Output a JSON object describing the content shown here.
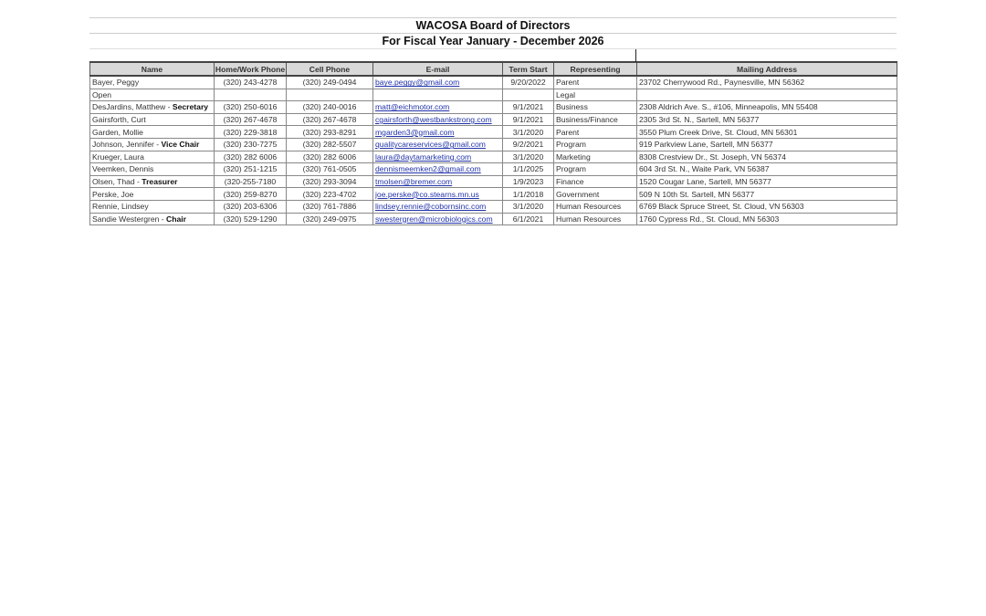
{
  "title": "WACOSA Board of Directors",
  "subtitle": "For Fiscal Year January -  December 2026",
  "columns": [
    "Name",
    "Home/Work Phone",
    "Cell Phone",
    "E-mail",
    "Term Start",
    "Representing",
    "Mailing Address"
  ],
  "rows": [
    {
      "name": "Bayer, Peggy",
      "role": "",
      "home": "(320) 243-4278",
      "cell": "(320) 249-0494",
      "email": "baye.peggy@gmail.com",
      "term": "9/20/2022",
      "rep": "Parent",
      "addr": "23702 Cherrywood Rd., Paynesville, MN  56362"
    },
    {
      "name": "Open",
      "role": "",
      "home": "",
      "cell": "",
      "email": "",
      "term": "",
      "rep": "Legal",
      "addr": ""
    },
    {
      "name": "DesJardins, Matthew - ",
      "role": "Secretary",
      "home": "(320) 250-6016",
      "cell": "(320) 240-0016",
      "email": "matt@eichmotor.com",
      "term": "9/1/2021",
      "rep": "Business",
      "addr": "2308 Aldrich Ave. S., #106, Minneapolis, MN  55408"
    },
    {
      "name": "Gairsforth, Curt",
      "role": "",
      "home": "(320) 267-4678",
      "cell": "(320) 267-4678",
      "email": "cgairsforth@westbankstrong.com",
      "term": "9/1/2021",
      "rep": "Business/Finance",
      "addr": "2305 3rd St. N., Sartell, MN  56377"
    },
    {
      "name": "Garden, Mollie",
      "role": "",
      "home": "(320) 229-3818",
      "cell": "(320) 293-8291",
      "email": "mgarden3@gmail.com",
      "term": "3/1/2020",
      "rep": "Parent",
      "addr": "3550 Plum Creek Drive, St. Cloud, MN  56301"
    },
    {
      "name": "Johnson, Jennifer - ",
      "role": "Vice Chair",
      "home": "(320) 230-7275",
      "cell": "(320) 282-5507",
      "email": "qualitycareservices@gmail.com",
      "term": "9/2/2021",
      "rep": "Program",
      "addr": "919 Parkview Lane, Sartell, MN  56377"
    },
    {
      "name": "Krueger, Laura",
      "role": "",
      "home": "(320) 282 6006",
      "cell": "(320) 282 6006",
      "email": "laura@daytamarketing.com",
      "term": "3/1/2020",
      "rep": "Marketing",
      "addr": "8308 Crestview Dr., St. Joseph, VN  56374"
    },
    {
      "name": "Veemken, Dennis",
      "role": "",
      "home": "(320) 251-1215",
      "cell": "(320) 761-0505",
      "email": "dennismeemken2@gmail.com",
      "term": "1/1/2025",
      "rep": "Program",
      "addr": "604 3rd St. N., Waite Park, VN  56387"
    },
    {
      "name": "Olsen, Thad - ",
      "role": "Treasurer",
      "home": "(320-255-7180",
      "cell": "(320) 293-3094",
      "email": "tmolsen@bremer.com",
      "term": "1/9/2023",
      "rep": "Finance",
      "addr": "1520 Cougar Lane, Sartell, MN  56377"
    },
    {
      "name": "Perske, Joe",
      "role": "",
      "home": "(320) 259-8270",
      "cell": "(320) 223-4702",
      "email": "joe.perske@co.stearns.mn.us",
      "term": "1/1/2018",
      "rep": "Government",
      "addr": "509 N 10th St. Sartell, MN 56377"
    },
    {
      "name": "Rennie, Lindsey",
      "role": "",
      "home": "(320) 203-6306",
      "cell": "(320) 761-7886",
      "email": "lindsey.rennie@cobornsinc.com",
      "term": "3/1/2020",
      "rep": "Human Resources",
      "addr": "6769 Black Spruce Street, St. Cloud, VN  56303"
    },
    {
      "name": "Sandie Westergren - ",
      "role": "Chair",
      "home": "(320) 529-1290",
      "cell": "(320) 249-0975",
      "email": "swestergren@microbiologics.com",
      "term": "6/1/2021",
      "rep": "Human Resources",
      "addr": "1760 Cypress Rd., St. Cloud, MN  56303"
    }
  ]
}
